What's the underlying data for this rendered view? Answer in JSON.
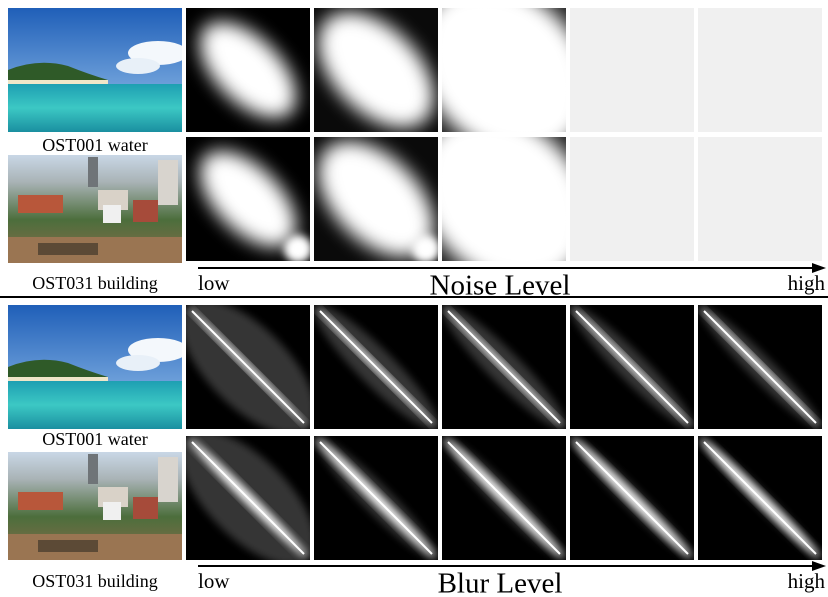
{
  "sections": [
    {
      "examples": [
        {
          "label": "OST001 water"
        },
        {
          "label": "OST031 building"
        }
      ],
      "axis": {
        "low": "low",
        "title": "Noise Level",
        "high": "high"
      }
    },
    {
      "examples": [
        {
          "label": "OST001 water"
        },
        {
          "label": "OST031 building"
        }
      ],
      "axis": {
        "low": "low",
        "title": "Blur Level",
        "high": "high"
      }
    }
  ]
}
